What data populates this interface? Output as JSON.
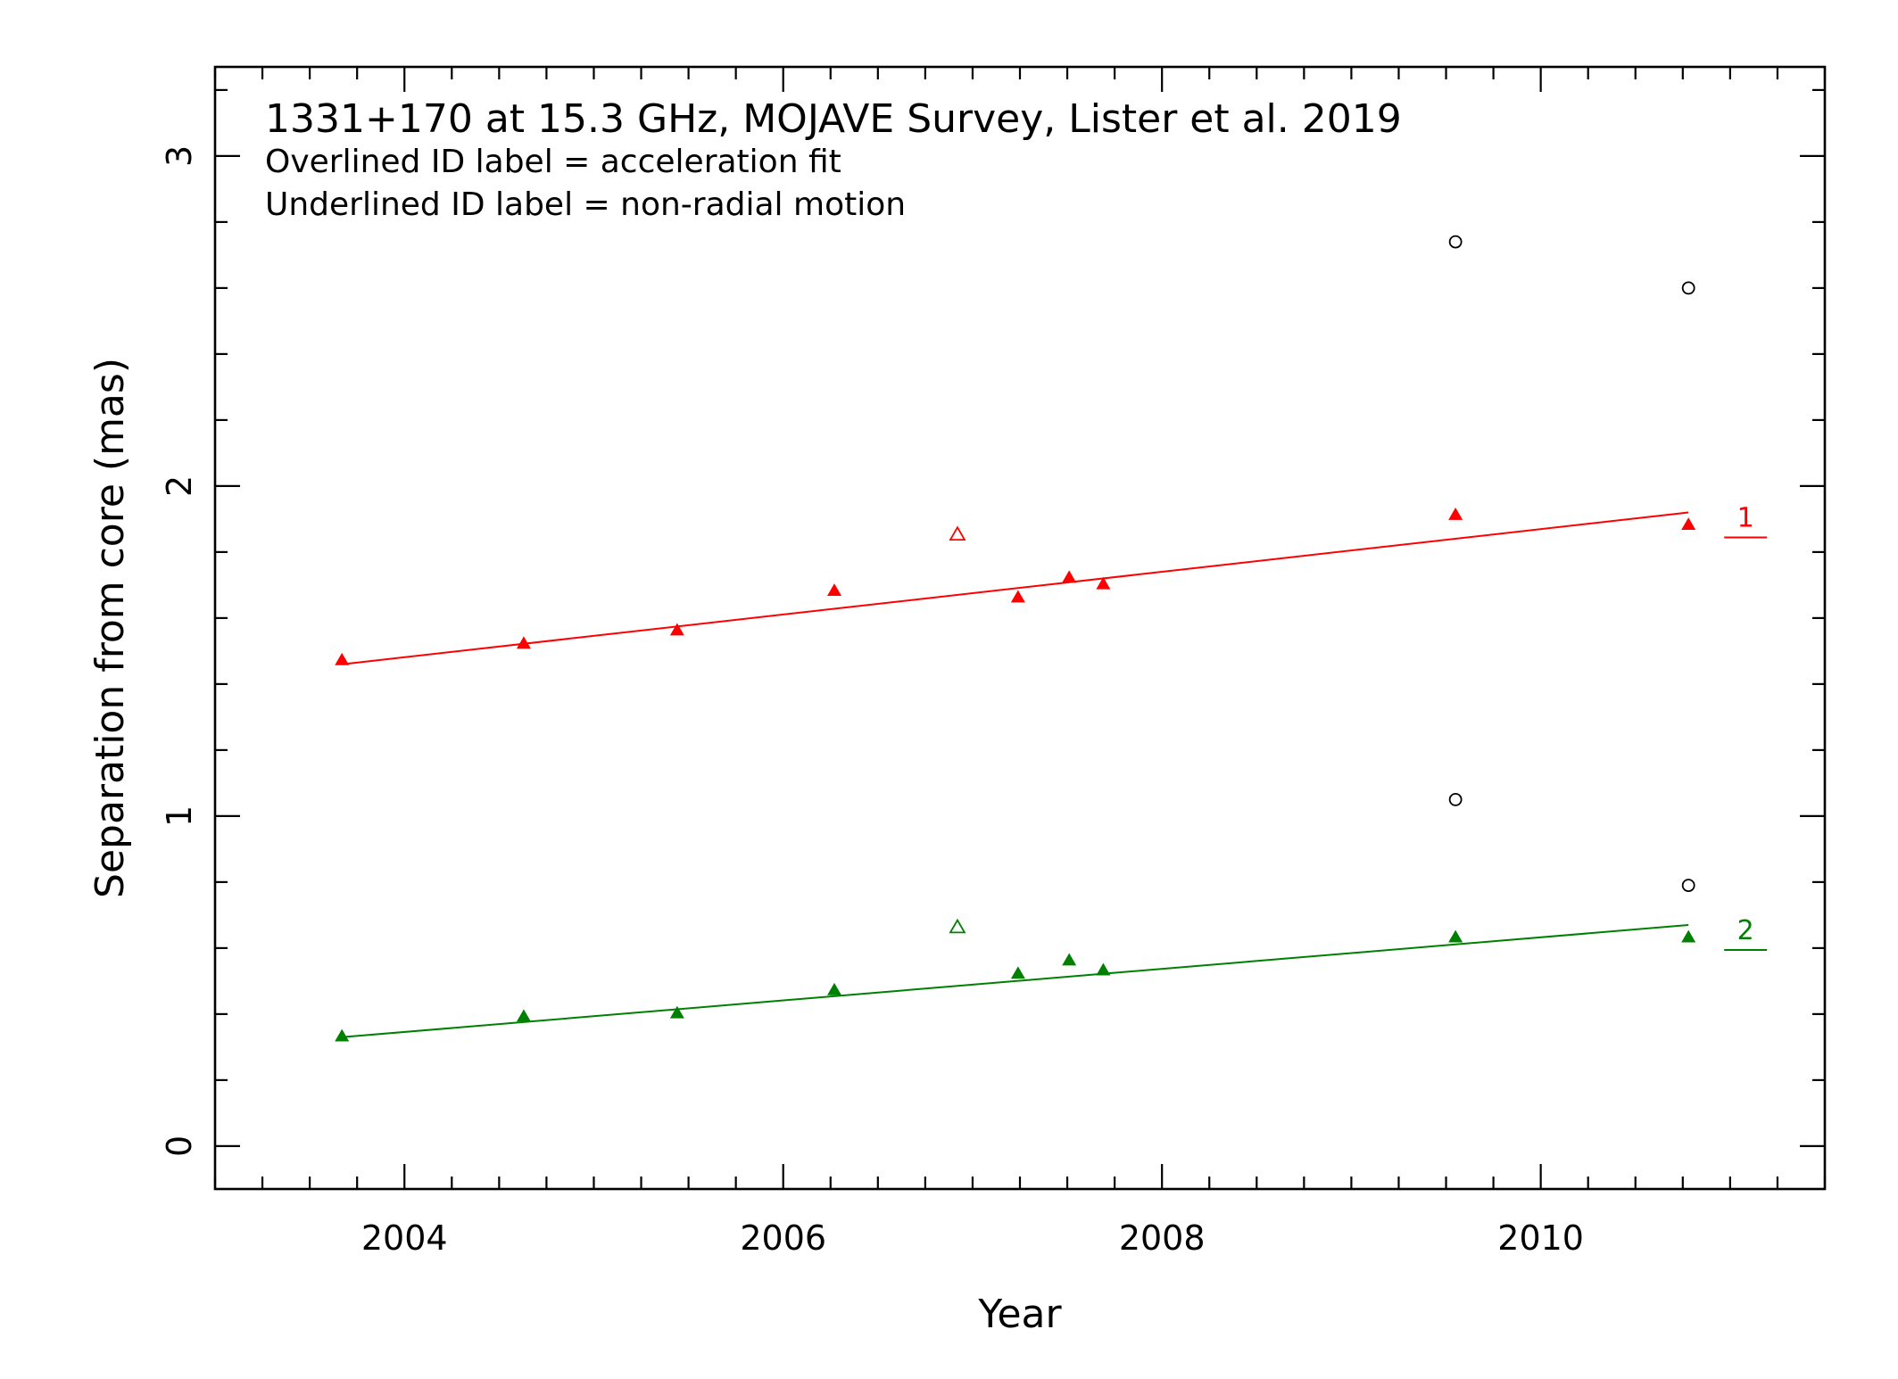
{
  "chart_data": {
    "type": "scatter",
    "title": "1331+170 at 15.3 GHz, MOJAVE Survey, Lister et al. 2019",
    "annotations": [
      "Overlined ID label = acceleration fit",
      "Underlined ID label = non-radial motion"
    ],
    "xlabel": "Year",
    "ylabel": "Separation from core (mas)",
    "xlim": [
      2003.0,
      2011.5
    ],
    "ylim": [
      -0.13,
      3.27
    ],
    "xticks": [
      2004,
      2006,
      2008,
      2010
    ],
    "xtick_labels": [
      "2004",
      "2006",
      "2008",
      "2010"
    ],
    "yticks": [
      0,
      1,
      2,
      3
    ],
    "ytick_labels": [
      "0",
      "1",
      "2",
      "3"
    ],
    "x_minor_step": 0.25,
    "y_minor_step": 0.2,
    "grid": false,
    "series": [
      {
        "name": "1",
        "label_style": "underlined",
        "color": "#ff0000",
        "marker": "filled-triangle",
        "x": [
          2003.67,
          2004.63,
          2005.44,
          2006.27,
          2007.24,
          2007.51,
          2007.69,
          2009.55,
          2010.78
        ],
        "y": [
          1.47,
          1.52,
          1.56,
          1.68,
          1.66,
          1.72,
          1.7,
          1.91,
          1.88
        ],
        "excluded": {
          "marker": "open-triangle",
          "x": [
            2006.92
          ],
          "y": [
            1.85
          ]
        },
        "fit": {
          "x": [
            2003.67,
            2010.78
          ],
          "y": [
            1.46,
            1.92
          ]
        }
      },
      {
        "name": "2",
        "label_style": "underlined",
        "color": "#008000",
        "marker": "filled-triangle",
        "x": [
          2003.67,
          2004.63,
          2005.44,
          2006.27,
          2007.24,
          2007.51,
          2007.69,
          2009.55,
          2010.78
        ],
        "y": [
          0.33,
          0.39,
          0.4,
          0.47,
          0.52,
          0.56,
          0.53,
          0.63,
          0.63
        ],
        "excluded": {
          "marker": "open-triangle",
          "x": [
            2006.92
          ],
          "y": [
            0.66
          ]
        },
        "fit": {
          "x": [
            2003.67,
            2010.78
          ],
          "y": [
            0.33,
            0.67
          ]
        }
      },
      {
        "color": "#000000",
        "marker": "open-circle",
        "x": [
          2009.55,
          2010.78,
          2009.55,
          2010.78
        ],
        "y": [
          2.74,
          2.6,
          1.05,
          0.79
        ]
      }
    ]
  }
}
